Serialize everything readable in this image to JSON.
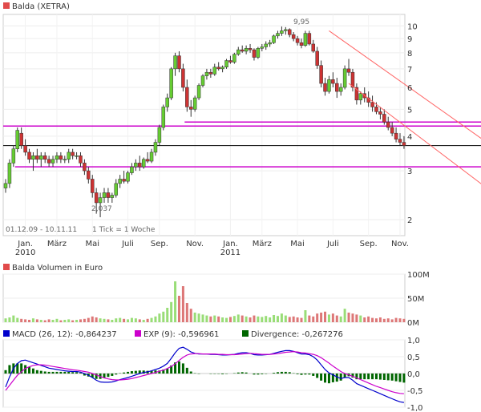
{
  "colors": {
    "up": "#66cc33",
    "down": "#cc3333",
    "price_marker": "#e14b4b",
    "volume_up": "#99dd77",
    "volume_down": "#dd7777",
    "macd": "#0000cc",
    "exp": "#cc00cc",
    "divergence": "#006600",
    "channel": "#ff6666",
    "support_magenta": "#cc00cc",
    "support_black": "#000000"
  },
  "price_panel": {
    "legend": "Balda (XETRA)",
    "range_text": "01.12.09 - 10.11.11",
    "tick_text": "1 Tick = 1 Woche",
    "high_label": "9,95",
    "low_label": "2,037",
    "y_ticks": [
      "10",
      "9",
      "8",
      "7",
      "6",
      "5",
      "4",
      "3",
      "2"
    ],
    "x_ticks": [
      {
        "label": "Jan.",
        "sub": "2010"
      },
      {
        "label": "März",
        "sub": ""
      },
      {
        "label": "Mai",
        "sub": ""
      },
      {
        "label": "Juli",
        "sub": ""
      },
      {
        "label": "Sep.",
        "sub": ""
      },
      {
        "label": "Nov.",
        "sub": ""
      },
      {
        "label": "Jan.",
        "sub": "2011"
      },
      {
        "label": "März",
        "sub": ""
      },
      {
        "label": "Mai",
        "sub": ""
      },
      {
        "label": "Juli",
        "sub": ""
      },
      {
        "label": "Sep.",
        "sub": ""
      },
      {
        "label": "Nov.",
        "sub": ""
      }
    ]
  },
  "volume_panel": {
    "legend": "Balda Volumen in Euro",
    "y_ticks": [
      "100M",
      "50M",
      "0M"
    ]
  },
  "macd_panel": {
    "legend_macd": "MACD (26, 12): -0,864237",
    "legend_exp": "EXP (9): -0,596961",
    "legend_div": "Divergence: -0,267276",
    "y_ticks": [
      "1,0",
      "0,5",
      "0,0",
      "-0,5",
      "-1,0"
    ]
  },
  "chart_data": [
    {
      "type": "candlestick",
      "title": "Balda (XETRA)",
      "scale": "log",
      "ylim": [
        1.75,
        11
      ],
      "x_unit": "week index (0 = first week of Dec 2009, 101 = week of 10.11.2011)",
      "ohlc": [
        [
          2.6,
          2.8,
          2.5,
          2.7
        ],
        [
          2.7,
          3.3,
          2.6,
          3.2
        ],
        [
          3.2,
          3.7,
          3.1,
          3.6
        ],
        [
          3.6,
          4.3,
          3.5,
          4.2
        ],
        [
          4.1,
          4.3,
          3.6,
          3.7
        ],
        [
          3.7,
          3.9,
          3.4,
          3.5
        ],
        [
          3.5,
          3.6,
          3.2,
          3.3
        ],
        [
          3.3,
          3.5,
          3.0,
          3.4
        ],
        [
          3.4,
          3.6,
          3.2,
          3.3
        ],
        [
          3.3,
          3.5,
          3.1,
          3.4
        ],
        [
          3.4,
          3.5,
          3.2,
          3.3
        ],
        [
          3.3,
          3.4,
          3.1,
          3.2
        ],
        [
          3.2,
          3.4,
          3.1,
          3.3
        ],
        [
          3.3,
          3.5,
          3.2,
          3.4
        ],
        [
          3.4,
          3.5,
          3.2,
          3.3
        ],
        [
          3.3,
          3.4,
          3.2,
          3.3
        ],
        [
          3.3,
          3.6,
          3.2,
          3.5
        ],
        [
          3.5,
          3.6,
          3.3,
          3.4
        ],
        [
          3.4,
          3.5,
          3.3,
          3.4
        ],
        [
          3.4,
          3.5,
          3.1,
          3.2
        ],
        [
          3.2,
          3.3,
          2.9,
          3.0
        ],
        [
          3.0,
          3.1,
          2.7,
          2.8
        ],
        [
          2.8,
          2.9,
          2.4,
          2.5
        ],
        [
          2.5,
          2.6,
          2.1,
          2.3
        ],
        [
          2.3,
          2.5,
          2.04,
          2.4
        ],
        [
          2.4,
          2.6,
          2.3,
          2.5
        ],
        [
          2.5,
          2.6,
          2.3,
          2.4
        ],
        [
          2.4,
          2.5,
          2.3,
          2.45
        ],
        [
          2.45,
          2.8,
          2.4,
          2.7
        ],
        [
          2.7,
          2.9,
          2.6,
          2.8
        ],
        [
          2.8,
          3.0,
          2.7,
          2.75
        ],
        [
          2.75,
          3.0,
          2.7,
          2.95
        ],
        [
          2.95,
          3.2,
          2.9,
          3.1
        ],
        [
          3.1,
          3.3,
          3.0,
          3.2
        ],
        [
          3.2,
          3.4,
          3.0,
          3.1
        ],
        [
          3.1,
          3.35,
          3.05,
          3.3
        ],
        [
          3.3,
          3.5,
          3.2,
          3.25
        ],
        [
          3.25,
          3.6,
          3.2,
          3.5
        ],
        [
          3.5,
          3.9,
          3.4,
          3.8
        ],
        [
          3.8,
          4.4,
          3.7,
          4.3
        ],
        [
          4.3,
          5.2,
          4.2,
          5.1
        ],
        [
          5.1,
          5.7,
          4.9,
          5.5
        ],
        [
          5.5,
          7.1,
          5.4,
          7.0
        ],
        [
          7.0,
          8.0,
          6.6,
          7.8
        ],
        [
          7.8,
          8.1,
          6.8,
          7.0
        ],
        [
          7.0,
          7.3,
          5.8,
          6.0
        ],
        [
          6.0,
          6.4,
          4.9,
          5.1
        ],
        [
          5.1,
          5.4,
          4.7,
          5.0
        ],
        [
          5.0,
          5.6,
          4.9,
          5.5
        ],
        [
          5.5,
          6.2,
          5.4,
          6.1
        ],
        [
          6.1,
          6.7,
          6.0,
          6.6
        ],
        [
          6.6,
          7.0,
          6.4,
          6.8
        ],
        [
          6.8,
          7.0,
          6.5,
          6.7
        ],
        [
          6.7,
          7.3,
          6.6,
          7.1
        ],
        [
          7.1,
          7.4,
          6.9,
          7.0
        ],
        [
          7.0,
          7.2,
          6.8,
          7.1
        ],
        [
          7.1,
          7.6,
          7.0,
          7.5
        ],
        [
          7.5,
          7.8,
          7.3,
          7.4
        ],
        [
          7.4,
          8.0,
          7.3,
          7.9
        ],
        [
          7.9,
          8.4,
          7.8,
          8.2
        ],
        [
          8.2,
          8.5,
          8.0,
          8.1
        ],
        [
          8.1,
          8.5,
          7.9,
          8.3
        ],
        [
          8.3,
          8.6,
          8.0,
          8.2
        ],
        [
          8.2,
          8.3,
          7.5,
          7.7
        ],
        [
          7.7,
          8.4,
          7.6,
          8.3
        ],
        [
          8.3,
          8.6,
          8.1,
          8.4
        ],
        [
          8.4,
          8.8,
          8.2,
          8.6
        ],
        [
          8.6,
          8.9,
          8.4,
          8.7
        ],
        [
          8.7,
          9.3,
          8.6,
          9.2
        ],
        [
          9.2,
          9.6,
          9.0,
          9.4
        ],
        [
          9.4,
          9.95,
          9.2,
          9.6
        ],
        [
          9.6,
          9.9,
          9.3,
          9.7
        ],
        [
          9.7,
          9.8,
          9.1,
          9.3
        ],
        [
          9.3,
          9.5,
          8.8,
          9.0
        ],
        [
          9.0,
          9.2,
          8.5,
          8.7
        ],
        [
          8.7,
          9.0,
          8.3,
          8.5
        ],
        [
          8.5,
          9.6,
          8.4,
          9.4
        ],
        [
          9.4,
          9.6,
          8.5,
          8.6
        ],
        [
          8.6,
          8.9,
          8.0,
          8.1
        ],
        [
          8.1,
          8.4,
          7.0,
          7.2
        ],
        [
          7.2,
          7.5,
          6.0,
          6.2
        ],
        [
          6.2,
          6.5,
          5.6,
          5.8
        ],
        [
          5.8,
          6.6,
          5.7,
          6.4
        ],
        [
          6.4,
          6.8,
          6.0,
          6.2
        ],
        [
          6.2,
          6.5,
          5.5,
          5.8
        ],
        [
          5.8,
          6.2,
          5.6,
          6.0
        ],
        [
          6.0,
          7.2,
          5.9,
          7.0
        ],
        [
          7.0,
          7.6,
          6.6,
          6.8
        ],
        [
          6.8,
          7.0,
          5.8,
          6.0
        ],
        [
          6.0,
          6.2,
          5.2,
          5.4
        ],
        [
          5.4,
          5.8,
          5.2,
          5.7
        ],
        [
          5.7,
          6.0,
          5.3,
          5.5
        ],
        [
          5.5,
          5.8,
          5.1,
          5.3
        ],
        [
          5.3,
          5.6,
          4.9,
          5.1
        ],
        [
          5.1,
          5.3,
          4.8,
          4.9
        ],
        [
          4.9,
          5.1,
          4.6,
          4.8
        ],
        [
          4.8,
          5.0,
          4.4,
          4.5
        ],
        [
          4.5,
          4.7,
          4.2,
          4.3
        ],
        [
          4.3,
          4.5,
          4.0,
          4.1
        ],
        [
          4.1,
          4.3,
          3.8,
          3.9
        ],
        [
          3.9,
          4.1,
          3.7,
          3.8
        ],
        [
          3.8,
          4.0,
          3.6,
          3.7
        ]
      ],
      "horizontal_lines": [
        {
          "value": 4.35,
          "color": "support_magenta",
          "from_week": 0
        },
        {
          "value": 4.5,
          "color": "support_magenta",
          "from_week": 46
        },
        {
          "value": 3.7,
          "color": "support_black",
          "from_week": 0
        },
        {
          "value": 3.1,
          "color": "support_magenta",
          "from_week": 3
        }
      ],
      "channel_lines": [
        {
          "from": [
            82,
            9.6
          ],
          "to": [
            122,
            3.8
          ]
        },
        {
          "from": [
            87,
            6.2
          ],
          "to": [
            122,
            2.6
          ]
        }
      ]
    },
    {
      "type": "bar",
      "title": "Balda Volumen in Euro",
      "ylim": [
        0,
        100
      ],
      "unit": "M",
      "values": [
        8,
        10,
        14,
        9,
        7,
        6,
        5,
        8,
        6,
        5,
        4,
        6,
        5,
        7,
        4,
        5,
        6,
        4,
        5,
        6,
        7,
        9,
        12,
        10,
        8,
        7,
        6,
        5,
        8,
        9,
        7,
        6,
        9,
        8,
        6,
        5,
        7,
        9,
        12,
        18,
        22,
        30,
        42,
        85,
        55,
        75,
        40,
        28,
        20,
        18,
        16,
        14,
        12,
        14,
        12,
        10,
        9,
        11,
        13,
        16,
        14,
        12,
        10,
        14,
        12,
        11,
        13,
        10,
        15,
        13,
        18,
        14,
        11,
        12,
        10,
        9,
        25,
        14,
        12,
        18,
        20,
        22,
        16,
        18,
        14,
        12,
        28,
        20,
        18,
        16,
        14,
        10,
        12,
        9,
        8,
        10,
        7,
        8,
        6,
        9,
        8,
        7
      ],
      "up": [
        true,
        true,
        true,
        true,
        false,
        false,
        false,
        true,
        false,
        true,
        false,
        false,
        true,
        true,
        false,
        true,
        true,
        false,
        true,
        false,
        false,
        false,
        false,
        false,
        true,
        true,
        false,
        true,
        true,
        true,
        false,
        true,
        true,
        true,
        false,
        true,
        false,
        true,
        true,
        true,
        true,
        true,
        true,
        true,
        false,
        false,
        false,
        false,
        true,
        true,
        true,
        true,
        false,
        true,
        false,
        true,
        true,
        false,
        true,
        true,
        false,
        true,
        false,
        false,
        true,
        true,
        true,
        true,
        true,
        true,
        true,
        true,
        false,
        false,
        false,
        false,
        true,
        false,
        false,
        false,
        false,
        false,
        true,
        false,
        false,
        true,
        true,
        false,
        false,
        false,
        true,
        false,
        false,
        false,
        false,
        false,
        false,
        false,
        false,
        false,
        false,
        false
      ]
    },
    {
      "type": "line",
      "title": "MACD",
      "ylim": [
        -1.0,
        1.0
      ],
      "series": [
        {
          "name": "MACD (26, 12): -0,864237",
          "values": [
            -0.4,
            -0.1,
            0.15,
            0.3,
            0.38,
            0.4,
            0.36,
            0.32,
            0.28,
            0.24,
            0.2,
            0.16,
            0.14,
            0.12,
            0.1,
            0.08,
            0.07,
            0.06,
            0.06,
            0.04,
            0.0,
            -0.05,
            -0.12,
            -0.2,
            -0.25,
            -0.26,
            -0.26,
            -0.25,
            -0.22,
            -0.18,
            -0.15,
            -0.12,
            -0.08,
            -0.04,
            0.0,
            0.03,
            0.05,
            0.08,
            0.12,
            0.16,
            0.22,
            0.3,
            0.45,
            0.62,
            0.75,
            0.78,
            0.72,
            0.64,
            0.6,
            0.58,
            0.58,
            0.58,
            0.57,
            0.57,
            0.56,
            0.55,
            0.55,
            0.56,
            0.57,
            0.6,
            0.62,
            0.62,
            0.6,
            0.56,
            0.55,
            0.55,
            0.56,
            0.57,
            0.6,
            0.63,
            0.66,
            0.68,
            0.68,
            0.66,
            0.62,
            0.58,
            0.58,
            0.56,
            0.5,
            0.4,
            0.26,
            0.12,
            0.02,
            -0.04,
            -0.1,
            -0.15,
            -0.12,
            -0.12,
            -0.2,
            -0.3,
            -0.35,
            -0.4,
            -0.45,
            -0.5,
            -0.55,
            -0.6,
            -0.65,
            -0.7,
            -0.75,
            -0.8,
            -0.84,
            -0.86
          ]
        },
        {
          "name": "EXP (9): -0,596961",
          "values": [
            -0.5,
            -0.35,
            -0.2,
            -0.05,
            0.05,
            0.15,
            0.2,
            0.24,
            0.26,
            0.26,
            0.25,
            0.23,
            0.21,
            0.19,
            0.17,
            0.15,
            0.13,
            0.11,
            0.1,
            0.08,
            0.06,
            0.04,
            0.0,
            -0.04,
            -0.09,
            -0.13,
            -0.16,
            -0.18,
            -0.19,
            -0.19,
            -0.18,
            -0.17,
            -0.15,
            -0.12,
            -0.09,
            -0.06,
            -0.03,
            0.0,
            0.03,
            0.07,
            0.1,
            0.15,
            0.21,
            0.29,
            0.39,
            0.48,
            0.55,
            0.58,
            0.59,
            0.59,
            0.58,
            0.58,
            0.58,
            0.58,
            0.57,
            0.57,
            0.56,
            0.56,
            0.56,
            0.57,
            0.58,
            0.59,
            0.6,
            0.59,
            0.58,
            0.57,
            0.57,
            0.57,
            0.58,
            0.59,
            0.61,
            0.63,
            0.64,
            0.65,
            0.64,
            0.62,
            0.61,
            0.59,
            0.57,
            0.53,
            0.47,
            0.39,
            0.31,
            0.22,
            0.14,
            0.06,
            0.0,
            -0.04,
            -0.08,
            -0.13,
            -0.18,
            -0.23,
            -0.28,
            -0.33,
            -0.38,
            -0.42,
            -0.46,
            -0.5,
            -0.54,
            -0.57,
            -0.59,
            -0.6
          ]
        }
      ],
      "divergence": [
        0.1,
        0.25,
        0.3,
        0.3,
        0.3,
        0.25,
        0.2,
        0.15,
        0.1,
        0.08,
        0.06,
        0.05,
        0.05,
        0.05,
        0.05,
        0.05,
        0.05,
        0.04,
        0.04,
        0.02,
        -0.06,
        -0.09,
        -0.12,
        -0.16,
        -0.16,
        -0.13,
        -0.1,
        -0.07,
        -0.03,
        0.01,
        0.03,
        0.05,
        0.07,
        0.08,
        0.09,
        0.09,
        0.08,
        0.08,
        0.09,
        0.09,
        0.12,
        0.15,
        0.24,
        0.33,
        0.36,
        0.3,
        0.17,
        0.06,
        0.01,
        -0.01,
        0.0,
        0.0,
        -0.01,
        -0.01,
        -0.01,
        -0.02,
        -0.01,
        0.0,
        0.01,
        0.03,
        0.04,
        0.03,
        0.0,
        -0.03,
        -0.03,
        -0.02,
        -0.01,
        0.0,
        0.02,
        0.04,
        0.05,
        0.05,
        0.04,
        0.01,
        -0.02,
        -0.04,
        -0.03,
        -0.03,
        -0.07,
        -0.13,
        -0.21,
        -0.27,
        -0.29,
        -0.26,
        -0.24,
        -0.21,
        -0.12,
        -0.08,
        -0.12,
        -0.17,
        -0.17,
        -0.17,
        -0.17,
        -0.17,
        -0.17,
        -0.18,
        -0.19,
        -0.2,
        -0.21,
        -0.23,
        -0.25,
        -0.27
      ]
    }
  ]
}
